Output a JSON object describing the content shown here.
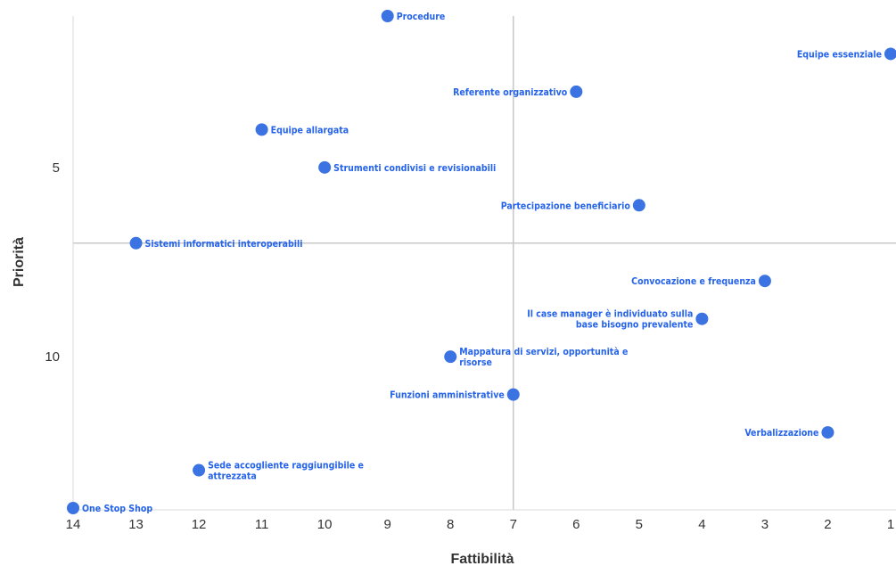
{
  "chart_data": {
    "type": "scatter",
    "title": "",
    "xlabel": "Fattibilità",
    "ylabel": "Priorità",
    "x_reversed": true,
    "y_reversed": true,
    "xlim": [
      14,
      1
    ],
    "ylim": [
      1,
      14
    ],
    "x_ticks": [
      14,
      13,
      12,
      11,
      10,
      9,
      8,
      7,
      6,
      5,
      4,
      3,
      2,
      1
    ],
    "y_ticks": [
      5,
      10
    ],
    "reference_lines": {
      "x": 7,
      "y": 7
    },
    "grid": false,
    "point_color": "#3b73e3",
    "label_color": "#2563eb",
    "reference_line_color": "#c8c8c8",
    "points": [
      {
        "label": "Procedure",
        "x": 9,
        "y": 1,
        "label_side": "right"
      },
      {
        "label": "Equipe essenziale",
        "x": 1,
        "y": 2,
        "label_side": "left"
      },
      {
        "label": "Referente organizzativo",
        "x": 6,
        "y": 3,
        "label_side": "left"
      },
      {
        "label": "Equipe allargata",
        "x": 11,
        "y": 4,
        "label_side": "right"
      },
      {
        "label": "Strumenti condivisi e revisionabili",
        "x": 10,
        "y": 5,
        "label_side": "right"
      },
      {
        "label": "Partecipazione beneficiario",
        "x": 5,
        "y": 6,
        "label_side": "left"
      },
      {
        "label": "Sistemi informatici interoperabili",
        "x": 13,
        "y": 7,
        "label_side": "right"
      },
      {
        "label": "Convocazione e frequenza",
        "x": 3,
        "y": 8,
        "label_side": "left"
      },
      {
        "label": "Il case manager è individuato sulla base bisogno prevalente",
        "lines": [
          "Il case manager è individuato sulla",
          "base bisogno prevalente"
        ],
        "x": 4,
        "y": 9,
        "label_side": "left"
      },
      {
        "label": "Mappatura di servizi, opportunità e risorse",
        "lines": [
          "Mappatura di servizi, opportunità e",
          "risorse"
        ],
        "x": 8,
        "y": 10,
        "label_side": "right"
      },
      {
        "label": "Funzioni amministrative",
        "x": 7,
        "y": 11,
        "label_side": "left"
      },
      {
        "label": "Verbalizzazione",
        "x": 2,
        "y": 12,
        "label_side": "left"
      },
      {
        "label": "Sede accogliente raggiungibile e attrezzata",
        "lines": [
          "Sede accogliente raggiungibile e",
          "attrezzata"
        ],
        "x": 12,
        "y": 13,
        "label_side": "right"
      },
      {
        "label": "One Stop Shop",
        "x": 14,
        "y": 14,
        "label_side": "right"
      }
    ]
  }
}
